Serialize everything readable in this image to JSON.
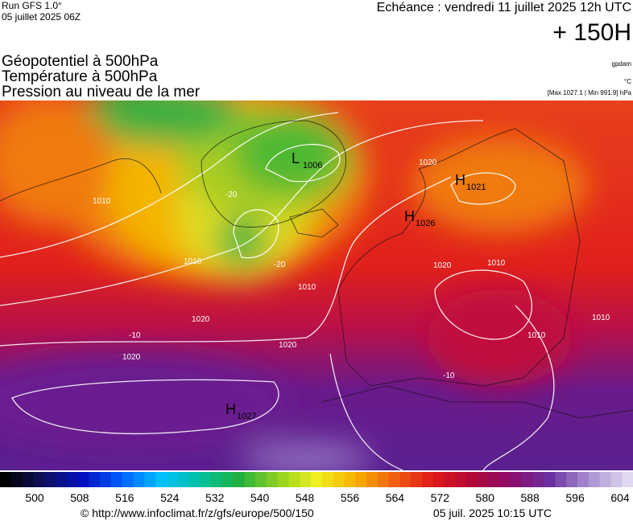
{
  "header": {
    "run": "Run GFS 1.0°",
    "run_date": "05 juillet 2025 06Z",
    "valid": "Echéance : vendredi 11 juillet 2025 12h UTC",
    "lead": "+ 150H"
  },
  "titles": [
    "Géopotentiel à 500hPa",
    "Température à 500hPa",
    "Pression au niveau de la mer"
  ],
  "units": {
    "geopotential": "gpdam",
    "temperature": "°C",
    "pressure": "[Max 1027.1 | Min 991.9] hPa"
  },
  "map": {
    "centers": [
      {
        "letter": "L",
        "value": "1006"
      },
      {
        "letter": "H",
        "value": "1021"
      },
      {
        "letter": "H",
        "value": "1026"
      },
      {
        "letter": "H",
        "value": "1027"
      }
    ],
    "contour_labels": [
      "1010",
      "1010",
      "1020",
      "1020",
      "1020",
      "1010",
      "1020",
      "1020",
      "1010",
      "1010",
      "1010",
      "-20",
      "-20",
      "-10",
      "-10"
    ]
  },
  "colorbar": {
    "labels": [
      "500",
      "508",
      "516",
      "524",
      "532",
      "540",
      "548",
      "556",
      "564",
      "572",
      "580",
      "588",
      "596",
      "604"
    ]
  },
  "footer": {
    "url": "© http://www.infoclimat.fr/z/gfs/europe/500/150",
    "generated": "05 juil. 2025 10:15 UTC"
  }
}
